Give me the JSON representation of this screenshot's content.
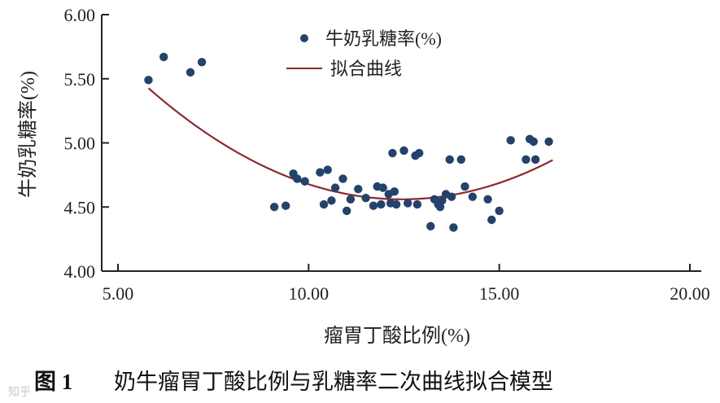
{
  "chart_data": {
    "type": "scatter",
    "xlabel": "瘤胃丁酸比例(%)",
    "ylabel": "牛奶乳糖率(%)",
    "xlim": [
      5.0,
      20.0
    ],
    "ylim": [
      4.0,
      6.0
    ],
    "xticks": [
      "5.00",
      "10.00",
      "15.00",
      "20.00"
    ],
    "yticks": [
      "4.00",
      "4.50",
      "5.00",
      "5.50",
      "6.00"
    ],
    "grid": false,
    "legend_position": "top-center",
    "series": [
      {
        "name": "牛奶乳糖率(%)",
        "kind": "scatter",
        "color": "#24426a",
        "points": [
          [
            5.8,
            5.49
          ],
          [
            6.2,
            5.67
          ],
          [
            6.9,
            5.55
          ],
          [
            7.2,
            5.63
          ],
          [
            9.1,
            4.5
          ],
          [
            9.4,
            4.51
          ],
          [
            9.6,
            4.76
          ],
          [
            9.7,
            4.72
          ],
          [
            9.9,
            4.7
          ],
          [
            10.3,
            4.77
          ],
          [
            10.4,
            4.52
          ],
          [
            10.5,
            4.79
          ],
          [
            10.6,
            4.55
          ],
          [
            10.7,
            4.65
          ],
          [
            10.9,
            4.72
          ],
          [
            11.0,
            4.47
          ],
          [
            11.1,
            4.56
          ],
          [
            11.3,
            4.64
          ],
          [
            11.5,
            4.57
          ],
          [
            11.7,
            4.51
          ],
          [
            11.8,
            4.66
          ],
          [
            11.9,
            4.52
          ],
          [
            11.95,
            4.65
          ],
          [
            12.1,
            4.6
          ],
          [
            12.15,
            4.53
          ],
          [
            12.2,
            4.92
          ],
          [
            12.25,
            4.62
          ],
          [
            12.3,
            4.52
          ],
          [
            12.5,
            4.94
          ],
          [
            12.6,
            4.53
          ],
          [
            12.8,
            4.9
          ],
          [
            12.9,
            4.92
          ],
          [
            12.85,
            4.52
          ],
          [
            13.2,
            4.35
          ],
          [
            13.3,
            4.56
          ],
          [
            13.4,
            4.52
          ],
          [
            13.45,
            4.5
          ],
          [
            13.5,
            4.55
          ],
          [
            13.6,
            4.6
          ],
          [
            13.7,
            4.87
          ],
          [
            13.75,
            4.58
          ],
          [
            13.8,
            4.34
          ],
          [
            14.0,
            4.87
          ],
          [
            14.1,
            4.66
          ],
          [
            14.3,
            4.58
          ],
          [
            14.7,
            4.56
          ],
          [
            14.8,
            4.4
          ],
          [
            15.0,
            4.47
          ],
          [
            15.3,
            5.02
          ],
          [
            15.7,
            4.87
          ],
          [
            15.8,
            5.03
          ],
          [
            15.9,
            5.01
          ],
          [
            15.95,
            4.87
          ],
          [
            16.3,
            5.01
          ]
        ]
      },
      {
        "name": "拟合曲线",
        "kind": "line",
        "color": "#8b2a2e",
        "x_range": [
          5.8,
          16.4
        ],
        "equation": {
          "a": 0.0196,
          "vertex_x": 12.45,
          "vertex_y": 4.56
        }
      }
    ]
  },
  "caption": {
    "label": "图 1",
    "text": "奶牛瘤胃丁酸比例与乳糖率二次曲线拟合模型"
  },
  "watermark": "知乎"
}
